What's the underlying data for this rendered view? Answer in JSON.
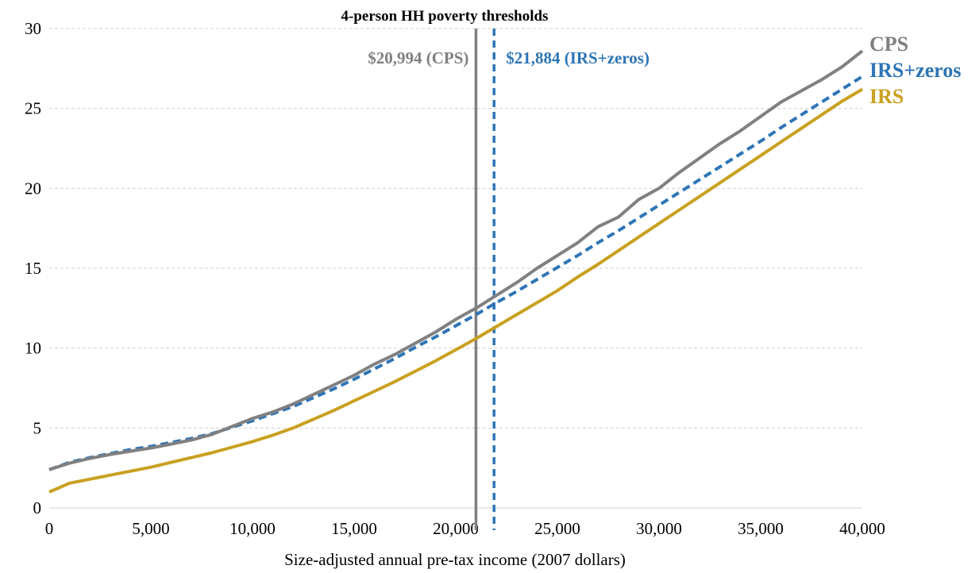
{
  "chart_data": {
    "type": "line",
    "title": "4-person HH poverty thresholds",
    "xlabel": "Size-adjusted annual pre-tax income (2007 dollars)",
    "ylabel": "",
    "xlim": [
      0,
      40000
    ],
    "ylim": [
      0,
      30
    ],
    "x_ticks": [
      0,
      5000,
      10000,
      15000,
      20000,
      25000,
      30000,
      35000,
      40000
    ],
    "x_tick_labels": [
      "0",
      "5,000",
      "10,000",
      "15,000",
      "20,000",
      "25,000",
      "30,000",
      "35,000",
      "40,000"
    ],
    "y_ticks": [
      0,
      5,
      10,
      15,
      20,
      25,
      30
    ],
    "y_tick_labels": [
      "0",
      "5",
      "10",
      "15",
      "20",
      "25",
      "30"
    ],
    "grid": "horizontal dashed",
    "legend": "labels at right end of lines",
    "series": [
      {
        "name": "CPS",
        "color": "#808080",
        "style": "solid",
        "x": [
          0,
          1000,
          2000,
          3000,
          4000,
          5000,
          6000,
          7000,
          8000,
          9000,
          10000,
          11000,
          12000,
          13000,
          14000,
          15000,
          16000,
          17000,
          18000,
          19000,
          20000,
          21000,
          22000,
          23000,
          24000,
          25000,
          26000,
          27000,
          28000,
          29000,
          30000,
          31000,
          32000,
          33000,
          34000,
          35000,
          36000,
          37000,
          38000,
          39000,
          40000
        ],
        "values": [
          2.4,
          2.8,
          3.1,
          3.35,
          3.55,
          3.75,
          4.0,
          4.25,
          4.6,
          5.1,
          5.6,
          6.0,
          6.5,
          7.1,
          7.7,
          8.3,
          9.0,
          9.6,
          10.3,
          11.0,
          11.8,
          12.5,
          13.3,
          14.1,
          15.0,
          15.8,
          16.6,
          17.6,
          18.2,
          19.3,
          20.0,
          21.0,
          21.9,
          22.8,
          23.6,
          24.5,
          25.4,
          26.1,
          26.8,
          27.6,
          28.6
        ]
      },
      {
        "name": "IRS+zeros",
        "color": "#2e75b6",
        "style": "dashed",
        "x": [
          0,
          1000,
          2000,
          3000,
          4000,
          5000,
          6000,
          7000,
          8000,
          9000,
          10000,
          11000,
          12000,
          13000,
          14000,
          15000,
          16000,
          17000,
          18000,
          19000,
          20000,
          21000,
          22000,
          23000,
          24000,
          25000,
          26000,
          27000,
          28000,
          29000,
          30000,
          31000,
          32000,
          33000,
          34000,
          35000,
          36000,
          37000,
          38000,
          39000,
          40000
        ],
        "values": [
          2.4,
          2.85,
          3.15,
          3.4,
          3.65,
          3.85,
          4.1,
          4.35,
          4.65,
          5.05,
          5.45,
          5.9,
          6.35,
          6.9,
          7.45,
          8.05,
          8.7,
          9.35,
          10.05,
          10.7,
          11.4,
          12.1,
          12.85,
          13.55,
          14.3,
          15.05,
          15.8,
          16.6,
          17.35,
          18.15,
          18.95,
          19.75,
          20.55,
          21.35,
          22.15,
          22.95,
          23.8,
          24.6,
          25.4,
          26.2,
          27.0
        ]
      },
      {
        "name": "IRS",
        "color": "#c9a020",
        "style": "solid",
        "x": [
          0,
          1000,
          2000,
          3000,
          4000,
          5000,
          6000,
          7000,
          8000,
          9000,
          10000,
          11000,
          12000,
          13000,
          14000,
          15000,
          16000,
          17000,
          18000,
          19000,
          20000,
          21000,
          22000,
          23000,
          24000,
          25000,
          26000,
          27000,
          28000,
          29000,
          30000,
          31000,
          32000,
          33000,
          34000,
          35000,
          36000,
          37000,
          38000,
          39000,
          40000
        ],
        "values": [
          1.0,
          1.55,
          1.8,
          2.05,
          2.3,
          2.55,
          2.85,
          3.15,
          3.45,
          3.8,
          4.15,
          4.55,
          5.0,
          5.55,
          6.1,
          6.7,
          7.3,
          7.9,
          8.55,
          9.2,
          9.9,
          10.6,
          11.35,
          12.1,
          12.85,
          13.6,
          14.45,
          15.25,
          16.1,
          16.95,
          17.8,
          18.65,
          19.5,
          20.35,
          21.2,
          22.05,
          22.9,
          23.75,
          24.6,
          25.45,
          26.2
        ]
      }
    ],
    "vlines": [
      {
        "x": 20994,
        "label": "$20,994 (CPS)",
        "color": "#808080",
        "style": "solid"
      },
      {
        "x": 21884,
        "label": "$21,884 (IRS+zeros)",
        "color": "#2e75b6",
        "style": "dashed"
      }
    ]
  }
}
